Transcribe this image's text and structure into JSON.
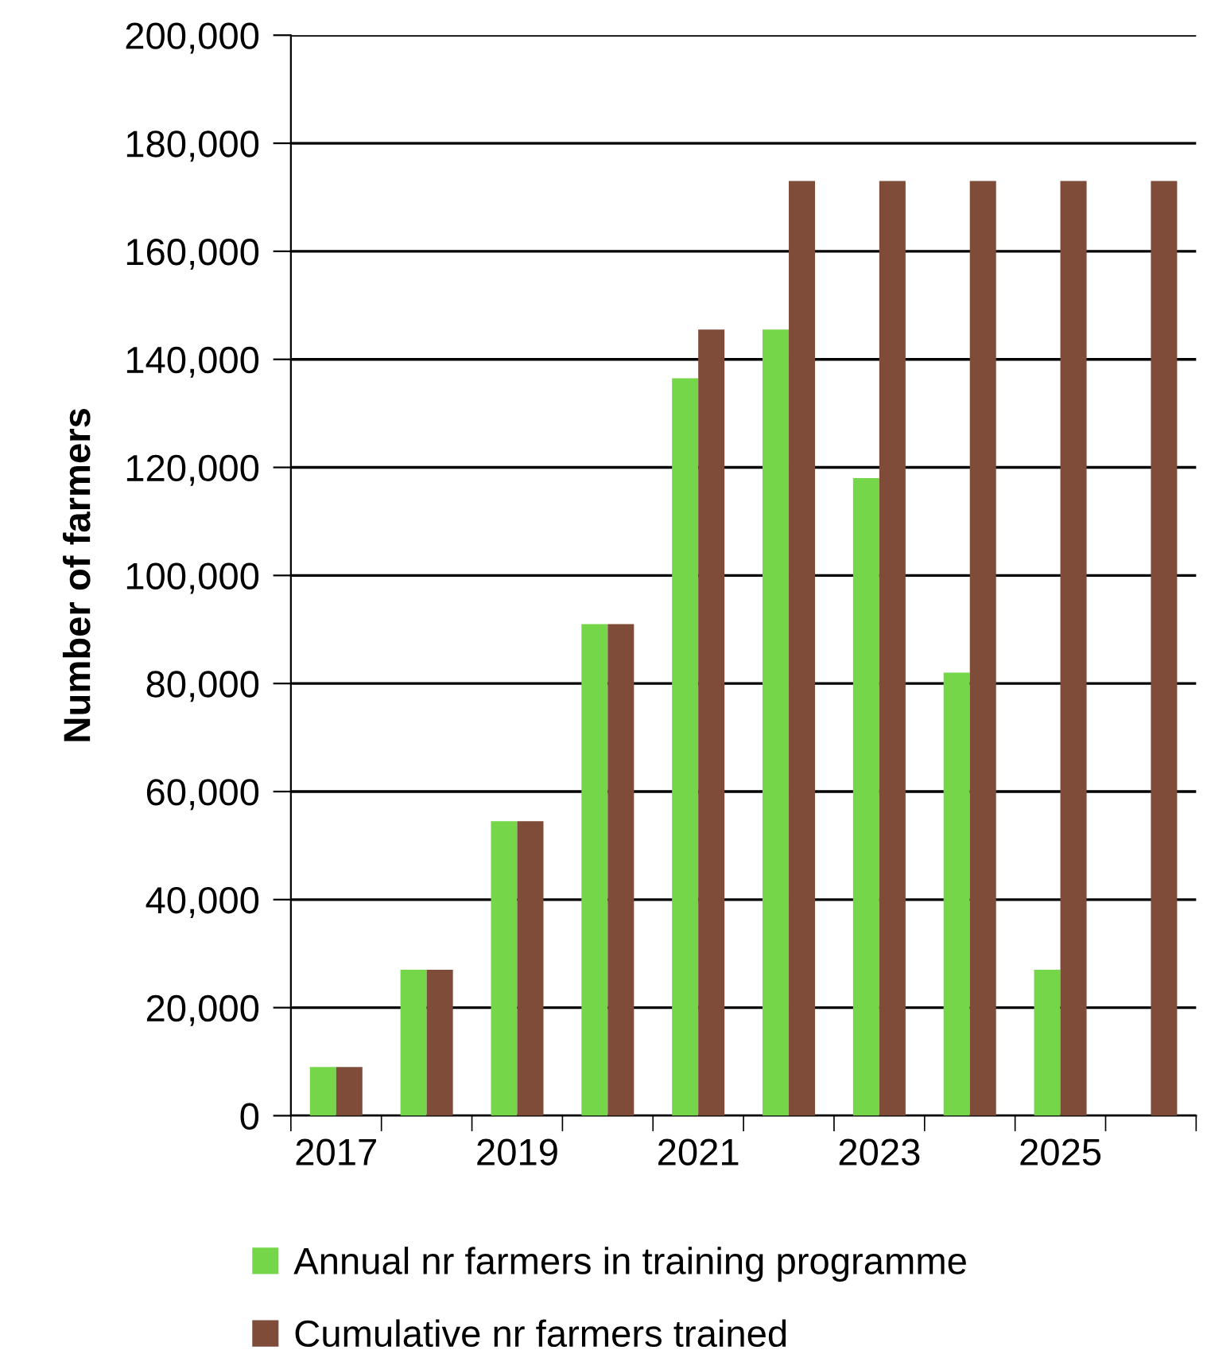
{
  "chart_data": {
    "type": "bar",
    "ylabel": "Number of farmers",
    "categories": [
      "2017",
      null,
      "2019",
      null,
      "2021",
      null,
      "2023",
      null,
      "2025",
      null
    ],
    "series": [
      {
        "name": "Annual nr farmers in training programme",
        "color": "#75d64a",
        "values": [
          9000,
          27000,
          54500,
          91000,
          136500,
          145500,
          118000,
          82000,
          27000,
          null
        ]
      },
      {
        "name": "Cumulative nr farmers trained",
        "color": "#7f4c3a",
        "values": [
          9000,
          27000,
          54500,
          91000,
          145500,
          173000,
          173000,
          173000,
          173000,
          173000
        ]
      }
    ],
    "ylim": [
      0,
      200000
    ],
    "yticks": [
      {
        "value": 0,
        "label": "0"
      },
      {
        "value": 20000,
        "label": "20,000"
      },
      {
        "value": 40000,
        "label": "40,000"
      },
      {
        "value": 60000,
        "label": "60,000"
      },
      {
        "value": 80000,
        "label": "80,000"
      },
      {
        "value": 100000,
        "label": "100,000"
      },
      {
        "value": 120000,
        "label": "120,000"
      },
      {
        "value": 140000,
        "label": "140,000"
      },
      {
        "value": 160000,
        "label": "160,000"
      },
      {
        "value": 180000,
        "label": "180,000"
      },
      {
        "value": 200000,
        "label": "200,000"
      }
    ],
    "grid": "y",
    "legend": "bottom"
  }
}
